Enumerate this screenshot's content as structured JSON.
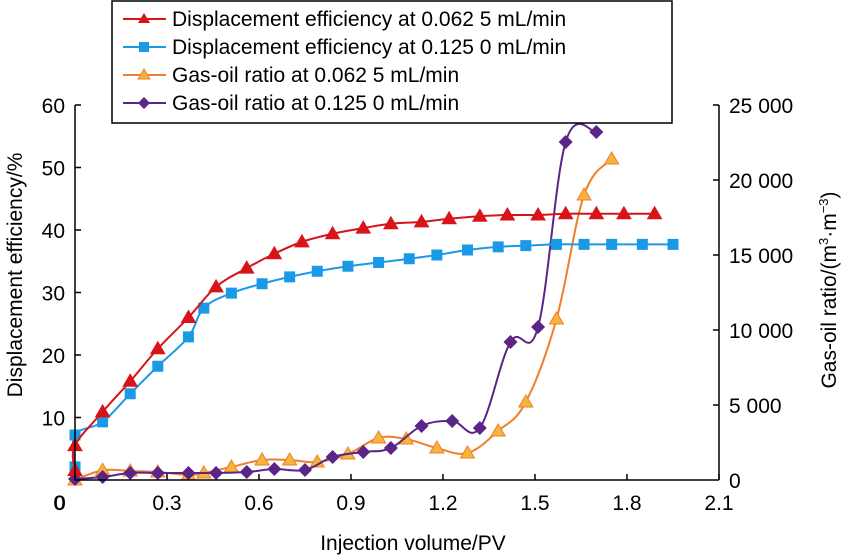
{
  "chart_data": {
    "type": "line",
    "title": "",
    "xlabel": "Injection volume/PV",
    "ylabel": "Displacement efficiency/%",
    "y2label_prefix": "Gas-oil ratio/(m",
    "y2label_sup1": "3",
    "y2label_mid": "·m",
    "y2label_sup2": "−3",
    "y2label_suffix": ")",
    "xlim": [
      0,
      2.1
    ],
    "ylim": [
      0,
      60
    ],
    "y2lim": [
      0,
      25000
    ],
    "xticks": [
      0,
      0.3,
      0.6,
      0.9,
      1.2,
      1.5,
      1.8,
      2.1
    ],
    "xtick_labels": [
      "0",
      "0.3",
      "0.6",
      "0.9",
      "1.2",
      "1.5",
      "1.8",
      "2.1"
    ],
    "yticks": [
      0,
      10,
      20,
      30,
      40,
      50,
      60
    ],
    "ytick_labels": [
      "0",
      "10",
      "20",
      "30",
      "40",
      "50",
      "60"
    ],
    "y2ticks": [
      0,
      5000,
      10000,
      15000,
      20000,
      25000
    ],
    "y2tick_labels": [
      "0",
      "5 000",
      "10 000",
      "15 000",
      "20 000",
      "25 000"
    ],
    "grid": false,
    "legend_position": "top",
    "series": [
      {
        "name": "Displacement efficiency at 0.062 5 mL/min",
        "axis": "left",
        "color": "#d7141a",
        "marker": "triangle",
        "x": [
          0.0,
          0.0,
          0.09,
          0.18,
          0.27,
          0.37,
          0.46,
          0.56,
          0.65,
          0.74,
          0.84,
          0.94,
          1.03,
          1.13,
          1.22,
          1.32,
          1.41,
          1.51,
          1.6,
          1.7,
          1.79,
          1.89
        ],
        "values": [
          1.5,
          5.5,
          10.9,
          15.8,
          21.0,
          26.0,
          30.9,
          33.9,
          36.2,
          38.1,
          39.4,
          40.3,
          41.0,
          41.3,
          41.8,
          42.2,
          42.4,
          42.4,
          42.6,
          42.6,
          42.6,
          42.6
        ]
      },
      {
        "name": "Displacement efficiency at 0.125 0 mL/min",
        "axis": "left",
        "color": "#1a9ae6",
        "marker": "square",
        "x": [
          0.0,
          0.0,
          0.09,
          0.18,
          0.27,
          0.37,
          0.42,
          0.51,
          0.61,
          0.7,
          0.79,
          0.89,
          0.99,
          1.09,
          1.18,
          1.28,
          1.38,
          1.47,
          1.57,
          1.66,
          1.75,
          1.85,
          1.95
        ],
        "values": [
          2.1,
          7.2,
          9.3,
          13.8,
          18.2,
          22.9,
          27.5,
          29.9,
          31.4,
          32.5,
          33.4,
          34.2,
          34.8,
          35.4,
          36.0,
          36.8,
          37.3,
          37.5,
          37.7,
          37.7,
          37.7,
          37.7,
          37.7
        ]
      },
      {
        "name": "Gas-oil ratio at 0.062 5 mL/min",
        "axis": "right",
        "color": "#ee7f2d",
        "fill": "#f5b43a",
        "marker": "triangle",
        "x": [
          0.0,
          0.09,
          0.18,
          0.27,
          0.37,
          0.42,
          0.51,
          0.61,
          0.7,
          0.79,
          0.89,
          0.99,
          1.08,
          1.18,
          1.28,
          1.38,
          1.47,
          1.57,
          1.66,
          1.75
        ],
        "values": [
          0,
          650,
          600,
          530,
          330,
          470,
          870,
          1330,
          1330,
          1200,
          1730,
          2800,
          2730,
          2130,
          1800,
          3270,
          5200,
          10730,
          19000,
          21400
        ]
      },
      {
        "name": "Gas-oil ratio at 0.125 0 mL/min",
        "axis": "right",
        "color": "#5b2487",
        "marker": "diamond",
        "x": [
          0.0,
          0.09,
          0.18,
          0.27,
          0.37,
          0.46,
          0.56,
          0.65,
          0.75,
          0.84,
          0.94,
          1.03,
          1.13,
          1.23,
          1.32,
          1.42,
          1.51,
          1.6,
          1.7
        ],
        "values": [
          70,
          200,
          470,
          470,
          470,
          470,
          530,
          730,
          670,
          1530,
          1870,
          2130,
          3600,
          3930,
          3470,
          9200,
          10200,
          22530,
          23200
        ]
      }
    ]
  }
}
